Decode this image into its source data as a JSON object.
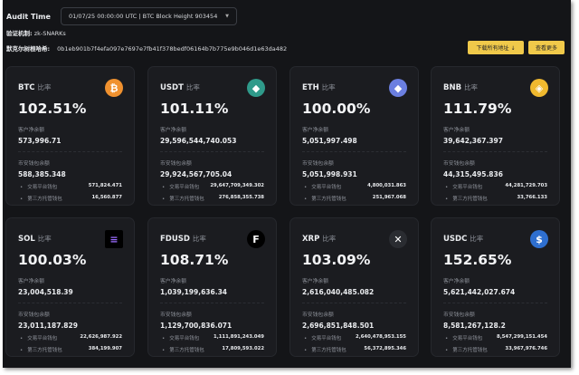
{
  "header": {
    "audit_label": "Audit Time",
    "audit_value": "01/07/25 00:00:00 UTC | BTC Block Height 903454",
    "mechanism_label": "验证机制:",
    "mechanism_value": "zk-SNARKs",
    "merkle_label": "默克尔树根哈希:",
    "merkle_value": "0b1eb901b7f4efa097e7697e7fb41f378bedf06164b7b775e9b046d1e63da482",
    "download_button": "下载所有地址 ↓",
    "more_button": "查看更多"
  },
  "labels": {
    "ratio_suffix": "比率",
    "customer_net": "客户净余额",
    "binance_wallet": "币安钱包余额",
    "exchange_wallet": "交易平台钱包",
    "custody_wallet": "第三方托管钱包"
  },
  "cards": [
    {
      "asset": "BTC",
      "icon": "bitcoin-icon",
      "color": "#f0912f",
      "ratio": "102.51%",
      "customer": "573,996.71",
      "wallet": "588,385.348",
      "exchange": "571,824.471",
      "custody": "16,560.877"
    },
    {
      "asset": "USDT",
      "icon": "tether-icon",
      "color": "#2f9a8a",
      "ratio": "101.11%",
      "customer": "29,596,544,740.053",
      "wallet": "29,924,567,705.04",
      "exchange": "29,647,709,349.302",
      "custody": "276,858,355.738"
    },
    {
      "asset": "ETH",
      "icon": "ethereum-icon",
      "color": "#6b7fe0",
      "ratio": "100.00%",
      "customer": "5,051,997.498",
      "wallet": "5,051,998.931",
      "exchange": "4,800,031.863",
      "custody": "251,967.068"
    },
    {
      "asset": "BNB",
      "icon": "bnb-icon",
      "color": "#f0b92f",
      "ratio": "111.79%",
      "customer": "39,642,367.397",
      "wallet": "44,315,495.836",
      "exchange": "44,281,729.703",
      "custody": "33,766.133"
    },
    {
      "asset": "SOL",
      "icon": "solana-icon",
      "color": "#000000",
      "ratio": "100.03%",
      "customer": "23,004,518.39",
      "wallet": "23,011,187.829",
      "exchange": "22,626,987.922",
      "custody": "384,199.907"
    },
    {
      "asset": "FDUSD",
      "icon": "fdusd-icon",
      "color": "#000000",
      "ratio": "108.71%",
      "customer": "1,039,199,636.34",
      "wallet": "1,129,700,836.071",
      "exchange": "1,111,891,243.049",
      "custody": "17,809,593.022"
    },
    {
      "asset": "XRP",
      "icon": "xrp-icon",
      "color": "#2a2c31",
      "ratio": "103.09%",
      "customer": "2,616,040,485.082",
      "wallet": "2,696,851,848.501",
      "exchange": "2,640,478,953.155",
      "custody": "56,372,895.346"
    },
    {
      "asset": "USDC",
      "icon": "usdc-icon",
      "color": "#2e6fd0",
      "ratio": "152.65%",
      "customer": "5,621,442,027.674",
      "wallet": "8,581,267,128.2",
      "exchange": "8,547,299,151.454",
      "custody": "33,967,976.746"
    }
  ]
}
